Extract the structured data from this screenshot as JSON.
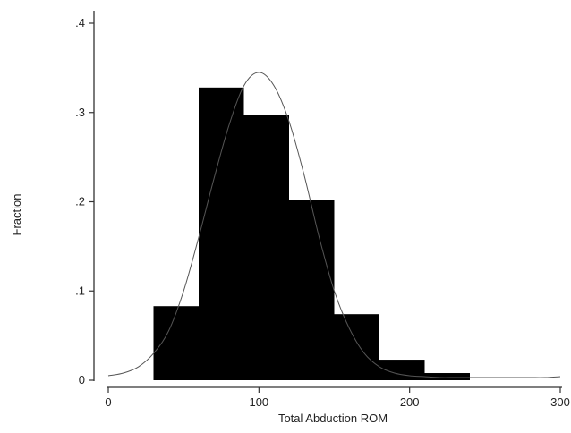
{
  "chart_data": {
    "type": "bar",
    "title": "",
    "xlabel": "Total Abduction ROM",
    "ylabel": "Fraction",
    "xlim": [
      0,
      300
    ],
    "ylim": [
      0,
      0.4
    ],
    "x_ticks": [
      0,
      100,
      200,
      300
    ],
    "y_ticks": [
      0,
      0.1,
      0.2,
      0.3,
      0.4
    ],
    "x_tick_labels": [
      "0",
      "100",
      "200",
      "300"
    ],
    "y_tick_labels": [
      "0",
      ".1",
      ".2",
      ".3",
      ".4"
    ],
    "grid": false,
    "legend": "none",
    "bar_color": "#000000",
    "bins": [
      {
        "x0": 30,
        "x1": 60,
        "value": 0.083
      },
      {
        "x0": 60,
        "x1": 90,
        "value": 0.328
      },
      {
        "x0": 90,
        "x1": 120,
        "value": 0.297
      },
      {
        "x0": 120,
        "x1": 150,
        "value": 0.202
      },
      {
        "x0": 150,
        "x1": 180,
        "value": 0.074
      },
      {
        "x0": 180,
        "x1": 210,
        "value": 0.023
      },
      {
        "x0": 210,
        "x1": 240,
        "value": 0.008
      }
    ],
    "normal_curve": {
      "x": [
        0,
        10,
        20,
        30,
        40,
        50,
        60,
        70,
        80,
        90,
        100,
        110,
        120,
        130,
        140,
        150,
        160,
        170,
        180,
        190,
        200,
        210,
        220,
        230,
        240,
        250,
        260,
        270,
        280,
        290,
        300
      ],
      "y": [
        0.005,
        0.008,
        0.015,
        0.03,
        0.055,
        0.1,
        0.16,
        0.225,
        0.285,
        0.33,
        0.345,
        0.33,
        0.29,
        0.23,
        0.16,
        0.1,
        0.058,
        0.03,
        0.015,
        0.008,
        0.005,
        0.004,
        0.003,
        0.003,
        0.003,
        0.003,
        0.003,
        0.003,
        0.003,
        0.003,
        0.004
      ]
    }
  }
}
